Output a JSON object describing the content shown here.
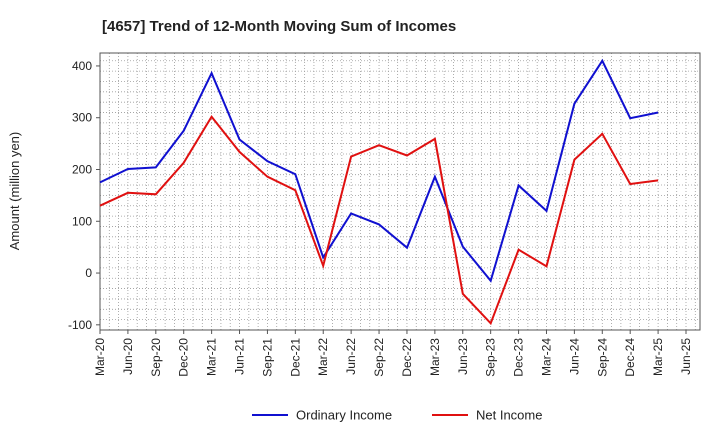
{
  "chart_data": {
    "type": "line",
    "title": "[4657]  Trend of 12-Month Moving Sum of Incomes",
    "xlabel": "",
    "ylabel": "Amount (million yen)",
    "ylim": [
      -110,
      425
    ],
    "yticks": [
      -100,
      0,
      100,
      200,
      300,
      400
    ],
    "grid": true,
    "legend_position": "bottom-center",
    "categories": [
      "Mar-20",
      "Jun-20",
      "Sep-20",
      "Dec-20",
      "Mar-21",
      "Jun-21",
      "Sep-21",
      "Dec-21",
      "Mar-22",
      "Jun-22",
      "Sep-22",
      "Dec-22",
      "Mar-23",
      "Jun-23",
      "Sep-23",
      "Dec-23",
      "Mar-24",
      "Jun-24",
      "Sep-24",
      "Dec-24",
      "Mar-25",
      "Jun-25"
    ],
    "series": [
      {
        "name": "Ordinary Income",
        "color": "#1010d0",
        "values": [
          175,
          201,
          204,
          275,
          386,
          258,
          216,
          191,
          30,
          115,
          94,
          49,
          186,
          51,
          -15,
          169,
          120,
          327,
          410,
          299,
          310,
          null
        ]
      },
      {
        "name": "Net Income",
        "color": "#e01010",
        "values": [
          130,
          155,
          152,
          213,
          302,
          234,
          186,
          160,
          14,
          225,
          247,
          227,
          259,
          -40,
          -97,
          45,
          13,
          219,
          269,
          172,
          179,
          null
        ]
      }
    ]
  }
}
